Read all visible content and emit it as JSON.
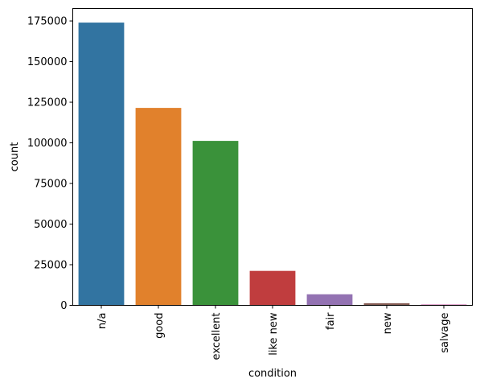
{
  "chart_data": {
    "type": "bar",
    "categories": [
      "n/a",
      "good",
      "excellent",
      "like new",
      "fair",
      "new",
      "salvage"
    ],
    "values": [
      174000,
      121500,
      101200,
      21200,
      6800,
      1300,
      600
    ],
    "colors": [
      "#3274a1",
      "#e1812c",
      "#3a923a",
      "#c03d3e",
      "#9372b2",
      "#845b53",
      "#d684bd"
    ],
    "xlabel": "condition",
    "ylabel": "count",
    "ylim": [
      0,
      182700
    ],
    "yticks": [
      0,
      25000,
      50000,
      75000,
      100000,
      125000,
      150000,
      175000
    ],
    "ytick_labels": [
      "0",
      "25000",
      "50000",
      "75000",
      "100000",
      "125000",
      "150000",
      "175000"
    ],
    "grid": false,
    "legend": "none"
  }
}
